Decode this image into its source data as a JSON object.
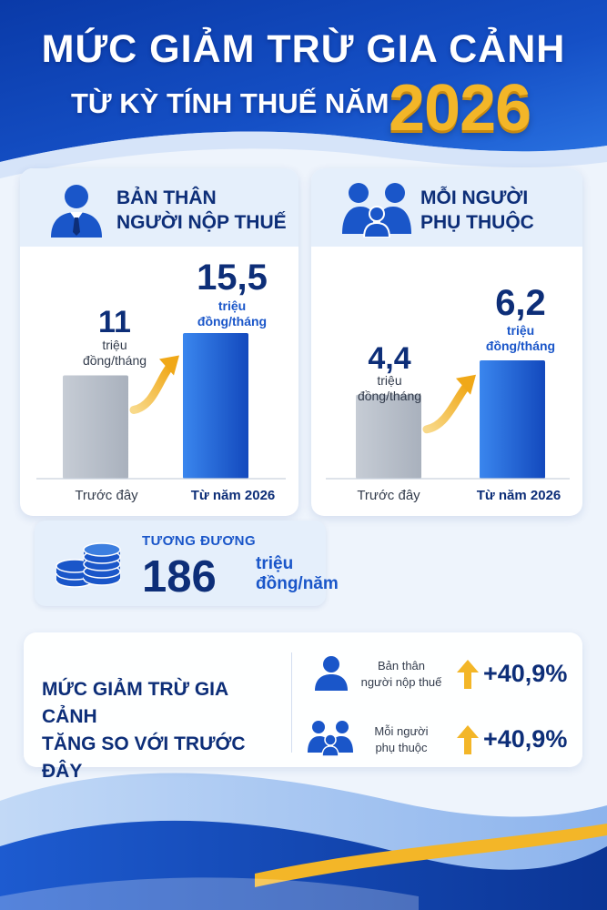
{
  "header": {
    "title_line1": "MỨC GIẢM TRỪ GIA CẢNH",
    "title_line2": "TỪ KỲ TÍNH THUẾ NĂM",
    "year": "2026"
  },
  "colors": {
    "navy": "#0d2e78",
    "blue": "#1a56c9",
    "gold": "#f3b628",
    "gray_bar": "#b8bec8"
  },
  "icons": {
    "taxpayer": "person-tie-icon",
    "dependent": "family-icon",
    "money": "coin-stack-icon",
    "increase": "arrow-up-icon"
  },
  "chart_data": [
    {
      "type": "bar",
      "title": "BẢN THÂN NGƯỜI NỘP THUẾ",
      "title_line1": "BẢN THÂN",
      "title_line2": "NGƯỜI NỘP THUẾ",
      "categories": [
        "Trước đây",
        "Từ năm 2026"
      ],
      "values": [
        11,
        15.5
      ],
      "value_labels": [
        "11",
        "15,5"
      ],
      "unit_line1": "triệu",
      "unit_line2": "đồng/tháng",
      "ylim": [
        0,
        16
      ]
    },
    {
      "type": "bar",
      "title": "MỖI NGƯỜI PHỤ THUỘC",
      "title_line1": "MỖI NGƯỜI",
      "title_line2": "PHỤ THUỘC",
      "categories": [
        "Trước đây",
        "Từ năm 2026"
      ],
      "values": [
        4.4,
        6.2
      ],
      "value_labels": [
        "4,4",
        "6,2"
      ],
      "unit_line1": "triệu",
      "unit_line2": "đồng/tháng",
      "ylim": [
        0,
        8
      ]
    }
  ],
  "equivalent": {
    "label": "TƯƠNG ĐƯƠNG",
    "value": "186",
    "unit_line1": "triệu",
    "unit_line2": "đồng/năm"
  },
  "summary": {
    "title_line1": "MỨC GIẢM TRỪ GIA CẢNH",
    "title_line2": "TĂNG SO VỚI TRƯỚC ĐÂY",
    "rows": [
      {
        "label_line1": "Bản thân",
        "label_line2": "người nộp thuế",
        "value": "+40,9%"
      },
      {
        "label_line1": "Mỗi người",
        "label_line2": "phụ thuộc",
        "value": "+40,9%"
      }
    ]
  }
}
